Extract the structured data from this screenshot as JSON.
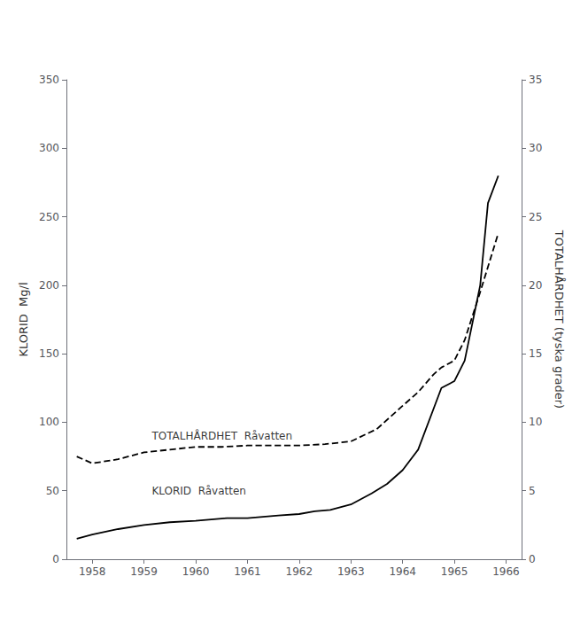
{
  "chart_data": {
    "type": "line",
    "ylabel": "KLORID  Mg/l",
    "y2label": "TOTALHÅRDHET (tyska grader)",
    "xlim": [
      1957.5,
      1966.3
    ],
    "xticks": [
      1958,
      1959,
      1960,
      1961,
      1962,
      1963,
      1964,
      1965,
      1966
    ],
    "ylim": [
      0,
      350
    ],
    "yticks": [
      0,
      50,
      100,
      150,
      200,
      250,
      300,
      350
    ],
    "y2lim": [
      0,
      35
    ],
    "y2ticks": [
      0,
      5,
      10,
      15,
      20,
      25,
      30,
      35
    ],
    "grid": false,
    "series": [
      {
        "x": [
          1957.7,
          1958.0,
          1958.5,
          1959.0,
          1959.5,
          1960.0,
          1960.3,
          1960.6,
          1961.0,
          1961.3,
          1961.6,
          1962.0,
          1962.3,
          1962.6,
          1963.0,
          1963.4,
          1963.7,
          1964.0,
          1964.3,
          1964.6,
          1964.75,
          1965.0,
          1965.2,
          1965.5,
          1965.65,
          1965.85
        ],
        "values": [
          15,
          18,
          22,
          25,
          27,
          28,
          29,
          30,
          30,
          31,
          32,
          33,
          35,
          36,
          40,
          48,
          55,
          65,
          80,
          110,
          125,
          130,
          145,
          200,
          260,
          280
        ],
        "color": "#000000",
        "line_style": "solid"
      },
      {
        "x": [
          1957.7,
          1958.0,
          1958.5,
          1959.0,
          1959.5,
          1960.0,
          1960.5,
          1961.0,
          1961.5,
          1962.0,
          1962.5,
          1963.0,
          1963.5,
          1964.0,
          1964.3,
          1964.6,
          1964.75,
          1965.0,
          1965.2,
          1965.5,
          1965.85
        ],
        "values": [
          75,
          70,
          73,
          78,
          80,
          82,
          82,
          83,
          83,
          83,
          84,
          86,
          95,
          112,
          122,
          135,
          140,
          145,
          160,
          195,
          238
        ],
        "color": "#000000",
        "line_style": "dashed"
      }
    ],
    "annotations": [
      {
        "text": "TOTALHÅRDHET  Råvatten",
        "x": 1959.15,
        "y": 86
      },
      {
        "text": "KLORID  Råvatten",
        "x": 1959.15,
        "y": 46
      }
    ]
  }
}
